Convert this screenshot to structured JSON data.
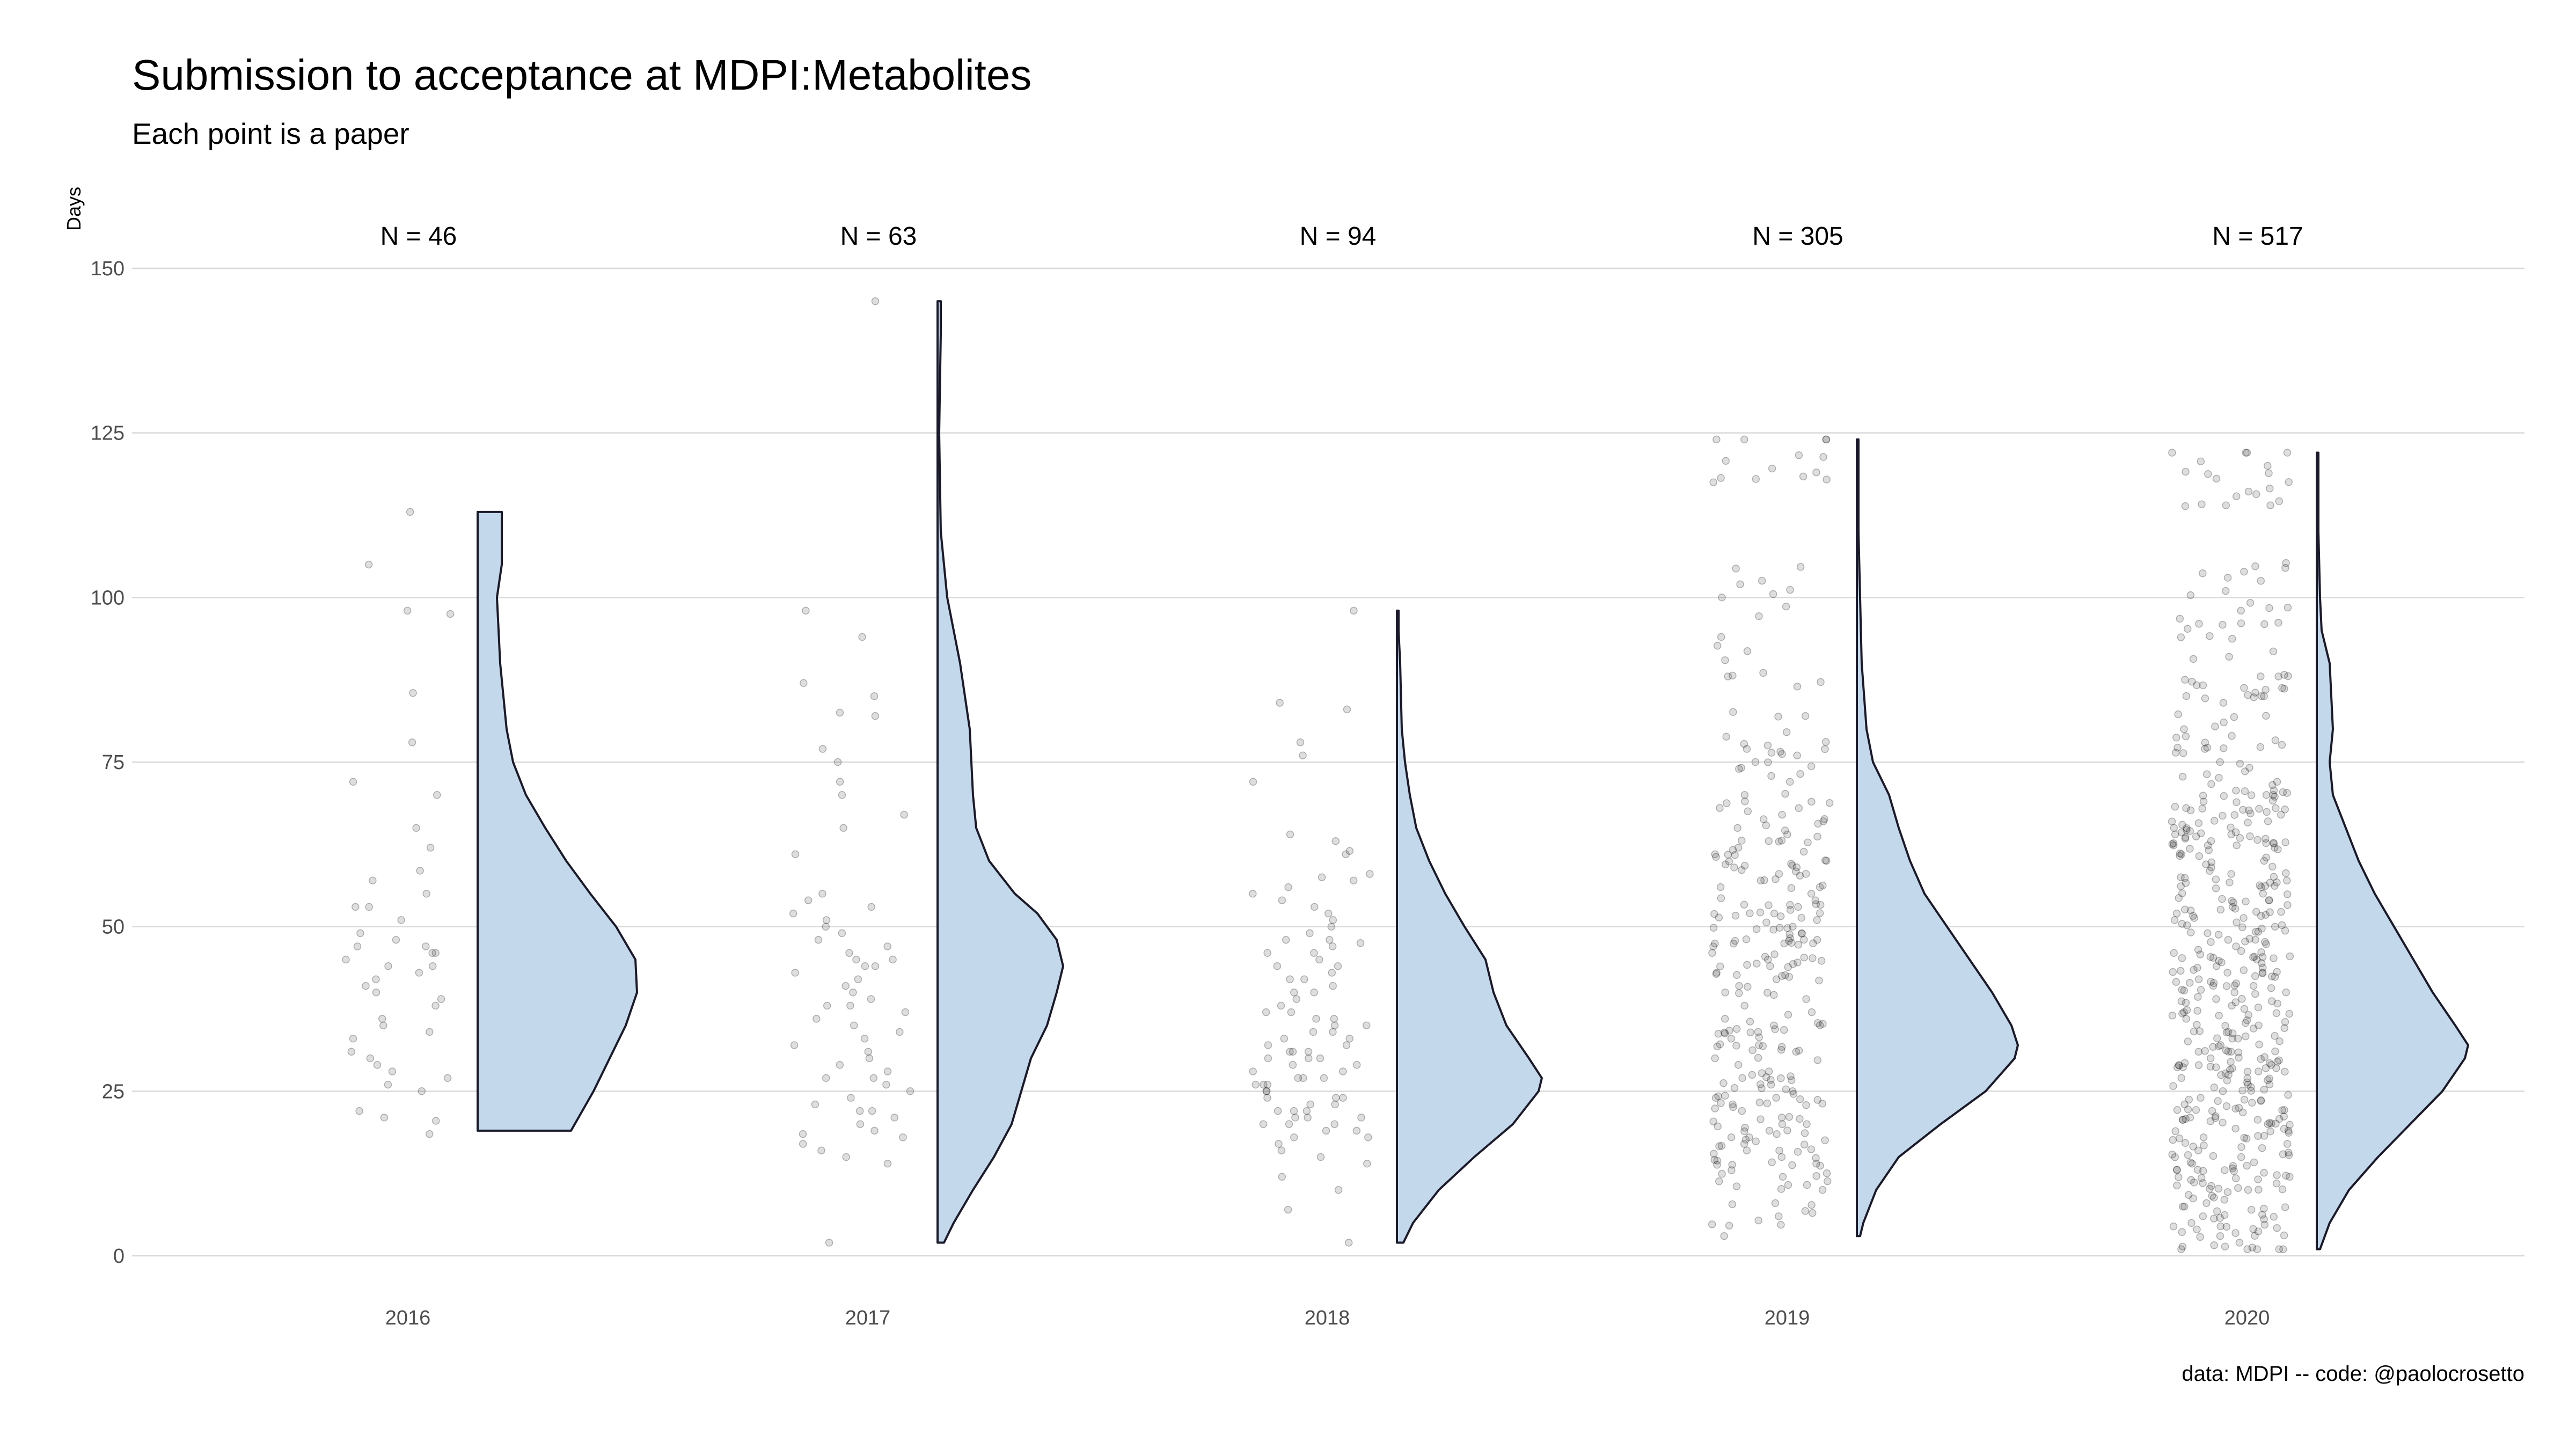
{
  "title": "Submission to acceptance at MDPI:Metabolites",
  "subtitle": "Each point is a paper",
  "caption": "data: MDPI -- code: @paolocrosetto",
  "colors": {
    "violin_fill": "#c4d8eb",
    "violin_stroke": "#1a1a2a",
    "point": "#000000",
    "grid": "#d9d9d9"
  },
  "chart_data": {
    "type": "scatter",
    "variant": "raincloud (half-violin + jittered points)",
    "ylabel": "Days",
    "xlabel": "",
    "ylim": [
      0,
      150
    ],
    "yticks": [
      0,
      25,
      50,
      75,
      100,
      125,
      150
    ],
    "grid": "horizontal",
    "categories": [
      "2016",
      "2017",
      "2018",
      "2019",
      "2020"
    ],
    "groups": [
      {
        "year": "2016",
        "n_label": "N = 46",
        "n": 46,
        "min": 19,
        "max": 113,
        "mode": 42,
        "density": [
          [
            19,
            0.58
          ],
          [
            25,
            0.72
          ],
          [
            30,
            0.82
          ],
          [
            35,
            0.92
          ],
          [
            40,
            0.99
          ],
          [
            45,
            0.98
          ],
          [
            50,
            0.86
          ],
          [
            55,
            0.7
          ],
          [
            60,
            0.55
          ],
          [
            65,
            0.42
          ],
          [
            70,
            0.3
          ],
          [
            75,
            0.22
          ],
          [
            80,
            0.18
          ],
          [
            90,
            0.14
          ],
          [
            100,
            0.12
          ],
          [
            105,
            0.15
          ],
          [
            110,
            0.15
          ],
          [
            113,
            0.15
          ]
        ],
        "points": [
          113,
          105,
          98,
          97.5,
          85.5,
          78,
          72,
          70,
          65,
          62,
          58.5,
          57,
          55,
          53,
          51,
          49,
          47,
          47,
          46,
          46,
          45,
          44,
          43,
          42,
          41,
          40,
          39,
          38,
          36,
          35,
          34,
          33,
          31,
          30,
          29,
          28,
          27,
          26,
          25,
          22,
          21,
          20.5,
          18.5,
          53,
          48,
          44
        ]
      },
      {
        "year": "2017",
        "n_label": "N = 63",
        "n": 63,
        "min": 2,
        "max": 145,
        "mode": 44,
        "density": [
          [
            2,
            0.04
          ],
          [
            5,
            0.1
          ],
          [
            10,
            0.22
          ],
          [
            15,
            0.35
          ],
          [
            20,
            0.46
          ],
          [
            25,
            0.52
          ],
          [
            30,
            0.58
          ],
          [
            35,
            0.68
          ],
          [
            40,
            0.74
          ],
          [
            44,
            0.78
          ],
          [
            48,
            0.74
          ],
          [
            52,
            0.62
          ],
          [
            55,
            0.48
          ],
          [
            60,
            0.32
          ],
          [
            65,
            0.24
          ],
          [
            70,
            0.22
          ],
          [
            80,
            0.2
          ],
          [
            90,
            0.14
          ],
          [
            100,
            0.06
          ],
          [
            110,
            0.02
          ],
          [
            125,
            0.01
          ],
          [
            140,
            0.02
          ],
          [
            145,
            0.02
          ]
        ],
        "points": [
          145,
          98,
          94,
          87,
          85,
          82.5,
          82,
          77,
          75,
          72,
          70,
          67,
          65,
          61,
          55,
          54,
          53,
          52,
          51,
          50,
          49,
          48,
          47,
          46,
          45,
          45,
          44,
          44,
          43,
          42,
          41,
          40,
          39,
          38,
          38,
          37,
          36,
          35,
          34,
          33,
          32,
          31,
          30,
          29,
          28,
          27,
          27,
          26,
          25,
          24,
          23,
          22,
          22,
          21,
          20,
          19,
          18.5,
          18,
          17,
          16,
          15,
          14,
          2
        ]
      },
      {
        "year": "2018",
        "n_label": "N = 94",
        "n": 94,
        "min": 2,
        "max": 98,
        "mode": 27,
        "density": [
          [
            2,
            0.04
          ],
          [
            5,
            0.1
          ],
          [
            10,
            0.26
          ],
          [
            15,
            0.48
          ],
          [
            20,
            0.72
          ],
          [
            25,
            0.88
          ],
          [
            27,
            0.9
          ],
          [
            30,
            0.82
          ],
          [
            35,
            0.68
          ],
          [
            40,
            0.6
          ],
          [
            45,
            0.55
          ],
          [
            50,
            0.42
          ],
          [
            55,
            0.3
          ],
          [
            60,
            0.2
          ],
          [
            65,
            0.12
          ],
          [
            70,
            0.08
          ],
          [
            75,
            0.05
          ],
          [
            80,
            0.03
          ],
          [
            90,
            0.02
          ],
          [
            95,
            0.01
          ],
          [
            98,
            0.01
          ]
        ],
        "points": [
          98,
          84,
          83,
          78,
          76,
          72,
          64,
          63,
          61.5,
          61,
          58,
          57.5,
          57,
          56,
          55,
          54,
          53,
          52,
          51,
          50,
          49,
          48,
          47.5,
          47,
          46,
          45,
          44,
          43,
          42,
          42,
          41,
          40,
          39,
          38,
          37,
          37,
          36,
          35,
          35,
          34,
          33,
          32,
          31,
          31,
          30,
          30,
          29,
          29,
          28,
          27,
          27,
          26,
          26,
          25,
          25,
          24,
          24,
          23,
          22,
          22,
          21,
          21,
          20,
          20,
          19,
          18,
          18,
          17,
          16,
          15,
          14,
          12,
          10,
          7,
          2,
          48,
          46,
          44,
          40,
          36,
          34,
          33,
          32,
          28,
          26,
          24,
          23,
          22,
          21,
          20,
          19,
          30,
          31,
          27
        ]
      },
      {
        "year": "2019",
        "n_label": "N = 305",
        "n": 305,
        "min": 3,
        "max": 124,
        "mode": 32,
        "density": [
          [
            3,
            0.02
          ],
          [
            5,
            0.04
          ],
          [
            10,
            0.12
          ],
          [
            15,
            0.26
          ],
          [
            20,
            0.52
          ],
          [
            25,
            0.8
          ],
          [
            30,
            0.98
          ],
          [
            32,
            1.0
          ],
          [
            35,
            0.96
          ],
          [
            40,
            0.84
          ],
          [
            45,
            0.7
          ],
          [
            50,
            0.56
          ],
          [
            55,
            0.42
          ],
          [
            60,
            0.33
          ],
          [
            65,
            0.26
          ],
          [
            70,
            0.2
          ],
          [
            75,
            0.1
          ],
          [
            80,
            0.06
          ],
          [
            90,
            0.03
          ],
          [
            100,
            0.02
          ],
          [
            110,
            0.01
          ],
          [
            120,
            0.01
          ],
          [
            124,
            0.01
          ]
        ],
        "points": [
          124,
          119,
          118,
          102,
          100,
          94,
          88,
          82,
          77,
          76,
          75,
          72,
          70,
          68,
          67,
          66,
          65,
          64,
          63,
          62,
          61,
          60,
          59,
          58,
          57,
          56,
          55,
          54,
          53,
          52,
          51,
          50,
          49,
          48,
          47,
          46,
          45,
          44,
          43,
          42,
          41,
          40,
          39,
          38,
          37,
          36,
          35,
          34,
          33,
          32,
          31,
          30,
          29,
          28,
          27,
          26,
          25,
          24,
          23,
          22,
          21,
          20,
          19,
          18,
          17,
          16,
          15,
          14,
          13,
          12,
          10,
          8,
          6,
          3
        ]
      },
      {
        "year": "2020",
        "n_label": "N = 517",
        "n": 517,
        "min": 1,
        "max": 122,
        "mode": 32,
        "density": [
          [
            1,
            0.02
          ],
          [
            5,
            0.08
          ],
          [
            10,
            0.2
          ],
          [
            15,
            0.38
          ],
          [
            20,
            0.58
          ],
          [
            25,
            0.78
          ],
          [
            30,
            0.92
          ],
          [
            32,
            0.94
          ],
          [
            35,
            0.86
          ],
          [
            40,
            0.72
          ],
          [
            45,
            0.6
          ],
          [
            50,
            0.48
          ],
          [
            55,
            0.36
          ],
          [
            60,
            0.26
          ],
          [
            65,
            0.18
          ],
          [
            70,
            0.1
          ],
          [
            75,
            0.08
          ],
          [
            80,
            0.1
          ],
          [
            90,
            0.08
          ],
          [
            95,
            0.03
          ],
          [
            100,
            0.02
          ],
          [
            110,
            0.01
          ],
          [
            122,
            0.01
          ]
        ],
        "points": [
          122,
          120,
          114,
          103,
          101,
          98,
          96,
          91,
          88,
          86,
          84,
          80,
          77,
          75,
          72,
          70,
          69,
          68,
          67,
          66,
          65,
          64,
          63,
          62,
          61,
          60,
          59,
          58,
          57,
          56,
          55,
          54,
          53,
          52,
          51,
          50,
          49,
          48,
          47,
          46,
          45,
          44,
          43,
          42,
          41,
          40,
          39,
          38,
          37,
          36,
          35,
          34,
          33,
          32,
          31,
          30,
          29,
          28,
          27,
          26,
          25,
          24,
          23,
          22,
          21,
          20,
          19,
          18,
          17,
          16,
          15,
          14,
          13,
          12,
          11,
          10,
          8,
          6,
          4,
          3,
          2,
          1
        ]
      }
    ]
  }
}
